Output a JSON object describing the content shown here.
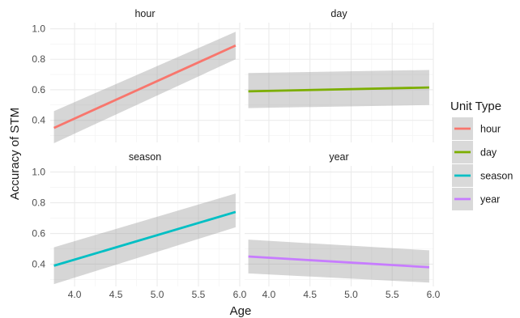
{
  "chart_data": {
    "type": "line",
    "xlabel": "Age",
    "ylabel": "Accuracy of STM",
    "xlim": [
      3.75,
      5.95
    ],
    "ylim": [
      0.28,
      1.0
    ],
    "x_ticks": [
      "4.0",
      "4.5",
      "5.0",
      "5.5",
      "6.0"
    ],
    "y_ticks": [
      "0.4",
      "0.6",
      "0.8",
      "1.0"
    ],
    "grid": true,
    "legend": {
      "title": "Unit Type",
      "position": "right",
      "entries": [
        "hour",
        "day",
        "season",
        "year"
      ]
    },
    "facets": [
      {
        "name": "hour",
        "color": "#F8766D",
        "x": [
          3.75,
          5.95
        ],
        "y": [
          0.35,
          0.89
        ],
        "ci_lower": [
          0.25,
          0.8
        ],
        "ci_upper": [
          0.46,
          0.98
        ]
      },
      {
        "name": "day",
        "color": "#7CAE00",
        "x": [
          3.75,
          5.95
        ],
        "y": [
          0.59,
          0.615
        ],
        "ci_lower": [
          0.48,
          0.5
        ],
        "ci_upper": [
          0.71,
          0.73
        ]
      },
      {
        "name": "season",
        "color": "#00BFC4",
        "x": [
          3.75,
          5.95
        ],
        "y": [
          0.39,
          0.74
        ],
        "ci_lower": [
          0.27,
          0.64
        ],
        "ci_upper": [
          0.51,
          0.86
        ]
      },
      {
        "name": "year",
        "color": "#C77CFF",
        "x": [
          3.75,
          5.95
        ],
        "y": [
          0.45,
          0.38
        ],
        "ci_lower": [
          0.34,
          0.28
        ],
        "ci_upper": [
          0.56,
          0.49
        ]
      }
    ]
  }
}
